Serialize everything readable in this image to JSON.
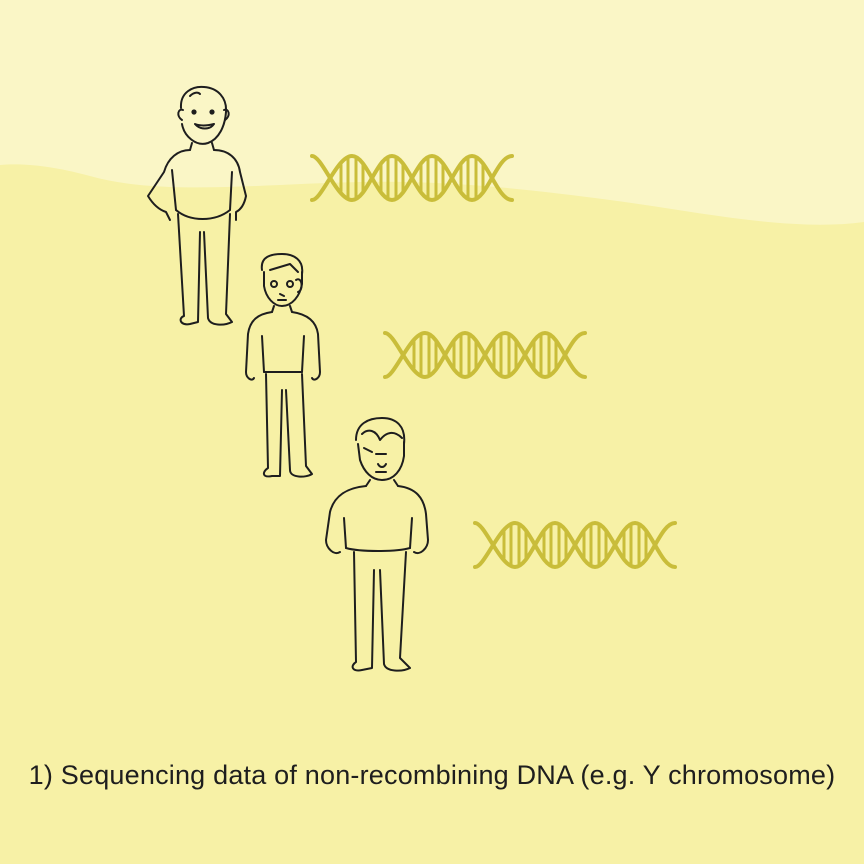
{
  "caption": "1) Sequencing data of non-recombining DNA (e.g. Y chromosome)",
  "colors": {
    "background": "#f7f1a6",
    "background_top": "#faf6c6",
    "dna": "#c9bd3a",
    "line": "#1e1e1e"
  },
  "generations": [
    {
      "person": "older-man-figure",
      "dna": "dna-helix-icon"
    },
    {
      "person": "middle-man-figure",
      "dna": "dna-helix-icon"
    },
    {
      "person": "young-man-figure",
      "dna": "dna-helix-icon"
    }
  ]
}
